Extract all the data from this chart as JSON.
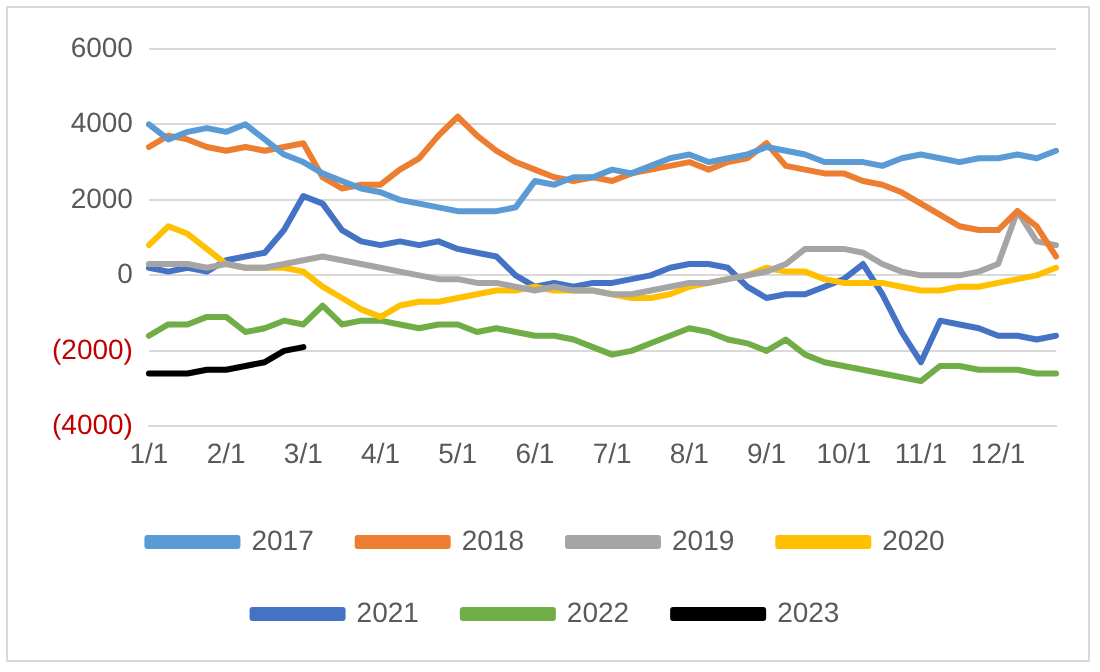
{
  "chart_data": {
    "type": "line",
    "categories": [
      "1/1",
      null,
      null,
      null,
      "2/1",
      null,
      null,
      null,
      "3/1",
      null,
      null,
      null,
      "4/1",
      null,
      null,
      null,
      "5/1",
      null,
      null,
      null,
      "6/1",
      null,
      null,
      null,
      "7/1",
      null,
      null,
      null,
      "8/1",
      null,
      null,
      null,
      "9/1",
      null,
      null,
      null,
      "10/1",
      null,
      null,
      null,
      "11/1",
      null,
      null,
      null,
      "12/1",
      null,
      null,
      null
    ],
    "series": [
      {
        "name": "2017",
        "color": "#5b9bd5",
        "values": [
          4000,
          3600,
          3800,
          3900,
          3800,
          4000,
          3600,
          3200,
          3000,
          2700,
          2500,
          2300,
          2200,
          2000,
          1900,
          1800,
          1700,
          1700,
          1700,
          1800,
          2500,
          2400,
          2600,
          2600,
          2800,
          2700,
          2900,
          3100,
          3200,
          3000,
          3100,
          3200,
          3400,
          3300,
          3200,
          3000,
          3000,
          3000,
          2900,
          3100,
          3200,
          3100,
          3000,
          3100,
          3100,
          3200,
          3100,
          3300
        ]
      },
      {
        "name": "2018",
        "color": "#ed7d31",
        "values": [
          3400,
          3700,
          3600,
          3400,
          3300,
          3400,
          3300,
          3400,
          3500,
          2600,
          2300,
          2400,
          2400,
          2800,
          3100,
          3700,
          4200,
          3700,
          3300,
          3000,
          2800,
          2600,
          2500,
          2600,
          2500,
          2700,
          2800,
          2900,
          3000,
          2800,
          3000,
          3100,
          3500,
          2900,
          2800,
          2700,
          2700,
          2500,
          2400,
          2200,
          1900,
          1600,
          1300,
          1200,
          1200,
          1700,
          1300,
          500
        ]
      },
      {
        "name": "2019",
        "color": "#a5a5a5",
        "values": [
          300,
          300,
          300,
          200,
          300,
          200,
          200,
          300,
          400,
          500,
          400,
          300,
          200,
          100,
          0,
          -100,
          -100,
          -200,
          -200,
          -300,
          -400,
          -300,
          -400,
          -400,
          -500,
          -500,
          -400,
          -300,
          -200,
          -200,
          -100,
          0,
          100,
          300,
          700,
          700,
          700,
          600,
          300,
          100,
          0,
          0,
          0,
          100,
          300,
          1700,
          900,
          800
        ]
      },
      {
        "name": "2020",
        "color": "#ffc000",
        "values": [
          800,
          1300,
          1100,
          700,
          300,
          200,
          200,
          200,
          100,
          -300,
          -600,
          -900,
          -1100,
          -800,
          -700,
          -700,
          -600,
          -500,
          -400,
          -400,
          -300,
          -400,
          -400,
          -400,
          -500,
          -600,
          -600,
          -500,
          -300,
          -200,
          -100,
          0,
          200,
          100,
          100,
          -100,
          -200,
          -200,
          -200,
          -300,
          -400,
          -400,
          -300,
          -300,
          -200,
          -100,
          0,
          200
        ]
      },
      {
        "name": "2021",
        "color": "#4472c4",
        "values": [
          200,
          100,
          200,
          100,
          400,
          500,
          600,
          1200,
          2100,
          1900,
          1200,
          900,
          800,
          900,
          800,
          900,
          700,
          600,
          500,
          0,
          -300,
          -200,
          -300,
          -200,
          -200,
          -100,
          0,
          200,
          300,
          300,
          200,
          -300,
          -600,
          -500,
          -500,
          -300,
          -100,
          300,
          -500,
          -1500,
          -2300,
          -1200,
          -1300,
          -1400,
          -1600,
          -1600,
          -1700,
          -1600
        ]
      },
      {
        "name": "2022",
        "color": "#70ad47",
        "values": [
          -1600,
          -1300,
          -1300,
          -1100,
          -1100,
          -1500,
          -1400,
          -1200,
          -1300,
          -800,
          -1300,
          -1200,
          -1200,
          -1300,
          -1400,
          -1300,
          -1300,
          -1500,
          -1400,
          -1500,
          -1600,
          -1600,
          -1700,
          -1900,
          -2100,
          -2000,
          -1800,
          -1600,
          -1400,
          -1500,
          -1700,
          -1800,
          -2000,
          -1700,
          -2100,
          -2300,
          -2400,
          -2500,
          -2600,
          -2700,
          -2800,
          -2400,
          -2400,
          -2500,
          -2500,
          -2500,
          -2600,
          -2600
        ]
      },
      {
        "name": "2023",
        "color": "#000000",
        "values": [
          -2600,
          -2600,
          -2600,
          -2500,
          -2500,
          -2400,
          -2300,
          -2000,
          -1900,
          null,
          null,
          null,
          null,
          null,
          null,
          null,
          null,
          null,
          null,
          null,
          null,
          null,
          null,
          null,
          null,
          null,
          null,
          null,
          null,
          null,
          null,
          null,
          null,
          null,
          null,
          null,
          null,
          null,
          null,
          null,
          null,
          null,
          null,
          null,
          null,
          null,
          null,
          null
        ]
      }
    ],
    "ylim": [
      -4000,
      6000
    ],
    "yticks": [
      {
        "value": -4000,
        "label": "(4000)"
      },
      {
        "value": -2000,
        "label": "(2000)"
      },
      0,
      2000,
      4000,
      6000
    ],
    "grid": "y",
    "legend": "bottom",
    "marker": "none",
    "line_style": "solid"
  }
}
